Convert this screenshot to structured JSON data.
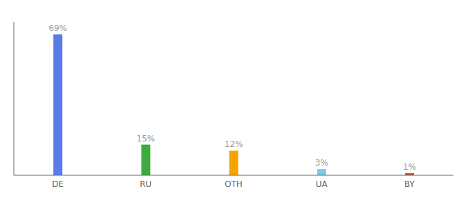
{
  "chart_data": {
    "type": "bar",
    "categories": [
      "DE",
      "RU",
      "OTH",
      "UA",
      "BY"
    ],
    "values": [
      69,
      15,
      12,
      3,
      1
    ],
    "value_labels": [
      "69%",
      "15%",
      "12%",
      "3%",
      "1%"
    ],
    "data_labels": true,
    "colors": [
      "#5b7be8",
      "#3dab3d",
      "#f5a500",
      "#7ec8e3",
      "#c0522a"
    ],
    "ylim": [
      0,
      75
    ],
    "tick_labels": "x",
    "grid": false
  }
}
